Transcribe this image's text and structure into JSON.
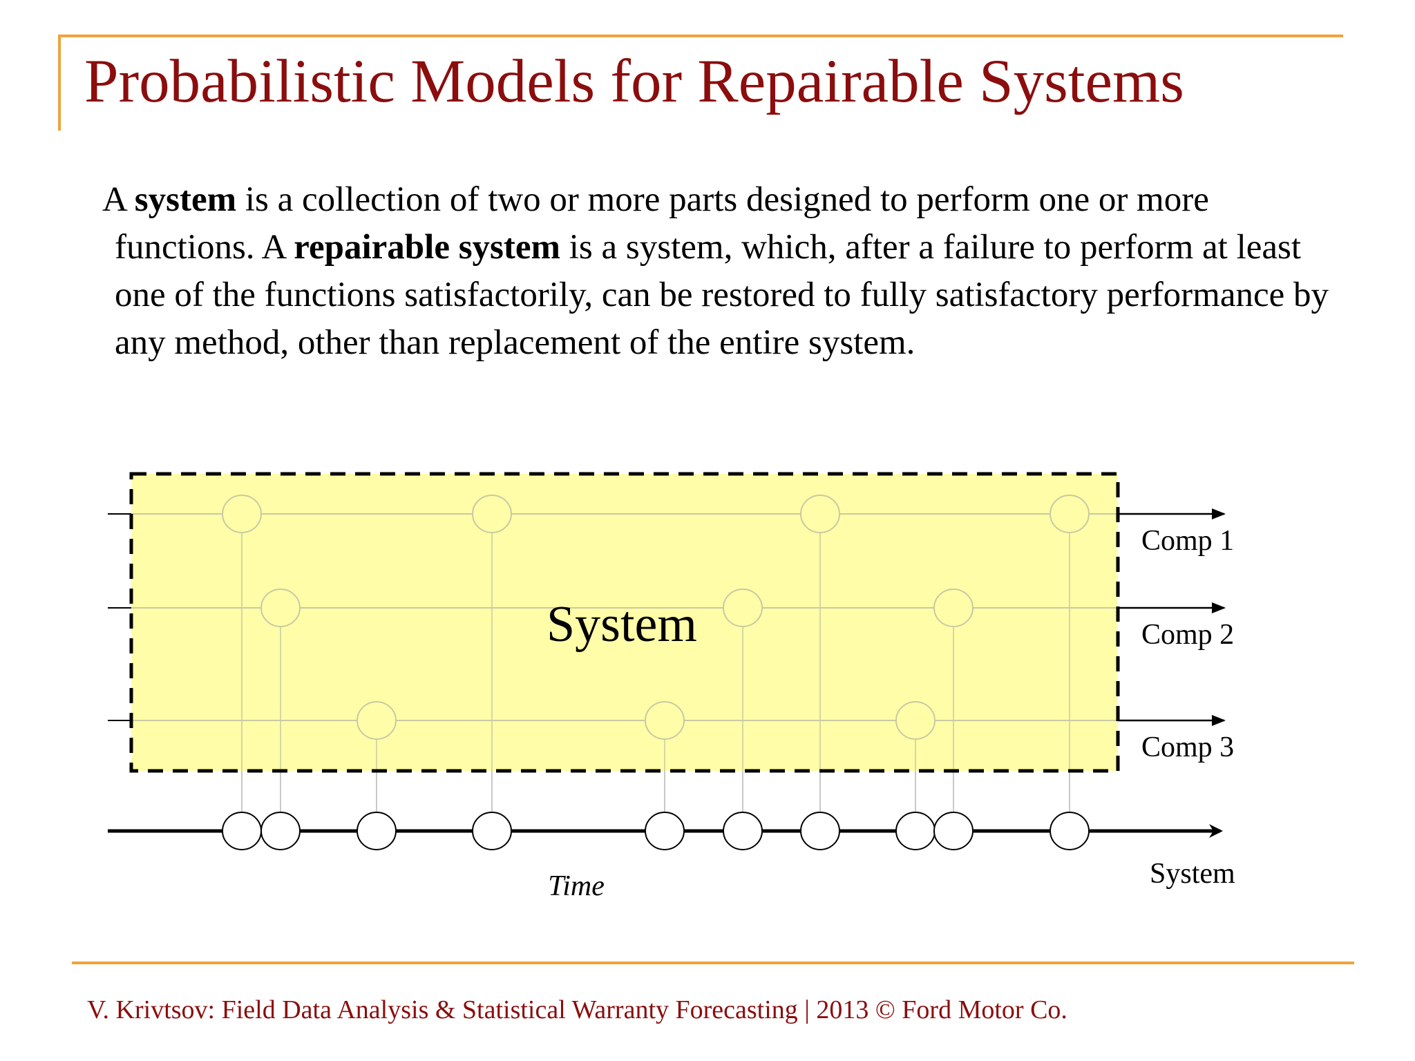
{
  "title": "Probabilistic Models for Repairable Systems",
  "definition": {
    "p1": "A ",
    "b1": "system",
    "p2": " is a collection of two or more parts designed to perform one or more functions.  A ",
    "b2": "repairable system",
    "p3": " is a system, which, after a failure to perform at least one of the functions satisfactorily, can be restored to fully satisfactory performance by any method, other than replacement of the entire system."
  },
  "diagram": {
    "box_label": "System",
    "time_label": "Time",
    "system_label": "System",
    "components": [
      {
        "label": "Comp 1",
        "failures": [
          1,
          4,
          7,
          10
        ]
      },
      {
        "label": "Comp 2",
        "failures": [
          2,
          6,
          9
        ]
      },
      {
        "label": "Comp 3",
        "failures": [
          3,
          5,
          8
        ]
      }
    ],
    "colors": {
      "box_fill": "#FFFDA8",
      "line": "#000000",
      "faded_line": "#C9C9A3"
    }
  },
  "footer": "V. Krivtsov: Field Data Analysis & Statistical Warranty Forecasting |  2013 © Ford Motor Co."
}
